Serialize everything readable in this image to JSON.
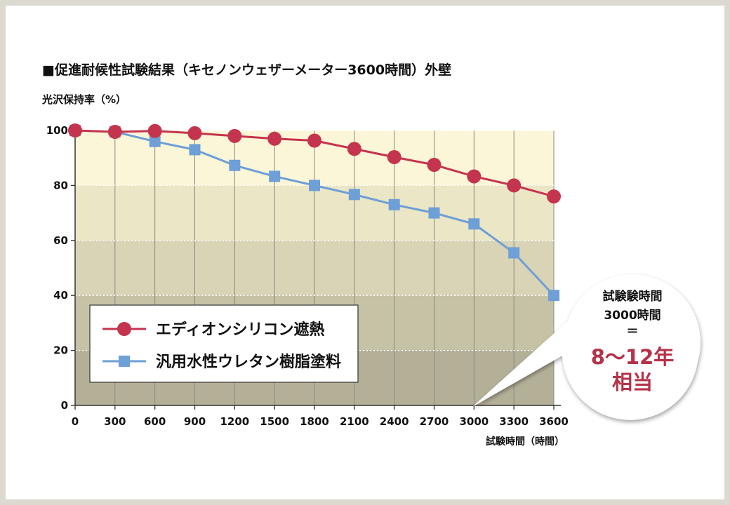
{
  "chart_data": {
    "type": "line",
    "title": "■促進耐候性試験結果（キセノンウェザーメーター3600時間）外壁",
    "ylabel": "光沢保持率（%）",
    "xlabel": "試験時間（時間）",
    "x": [
      0,
      300,
      600,
      900,
      1200,
      1500,
      1800,
      2100,
      2400,
      2700,
      3000,
      3300,
      3600
    ],
    "x_tick_labels": [
      "0",
      "300",
      "600",
      "900",
      "1200",
      "1500",
      "1800",
      "2100",
      "2400",
      "2700",
      "3000",
      "3300",
      "3600"
    ],
    "y_ticks": [
      0,
      20,
      40,
      60,
      80,
      100
    ],
    "ylim": [
      0,
      100
    ],
    "xlim": [
      0,
      3600
    ],
    "grid": true,
    "legend_position": "bottom-left",
    "series": [
      {
        "name": "エディオンシリコン遮熱",
        "color": "#c5344e",
        "marker": "circle",
        "values": [
          100,
          99.5,
          99.8,
          99,
          98,
          97,
          96.3,
          93.3,
          90.3,
          87.5,
          83.3,
          80,
          76
        ]
      },
      {
        "name": "汎用水性ウレタン樹脂塗料",
        "color": "#6e9fd6",
        "marker": "square",
        "values": [
          100,
          99.5,
          96,
          93,
          87.3,
          83.3,
          80,
          76.7,
          73,
          70,
          66,
          55.5,
          40
        ]
      }
    ],
    "callout": {
      "line1": "試験験時間",
      "line2": "3000時間",
      "line3": "＝",
      "line4": "8～12年",
      "line5": "相当"
    }
  }
}
